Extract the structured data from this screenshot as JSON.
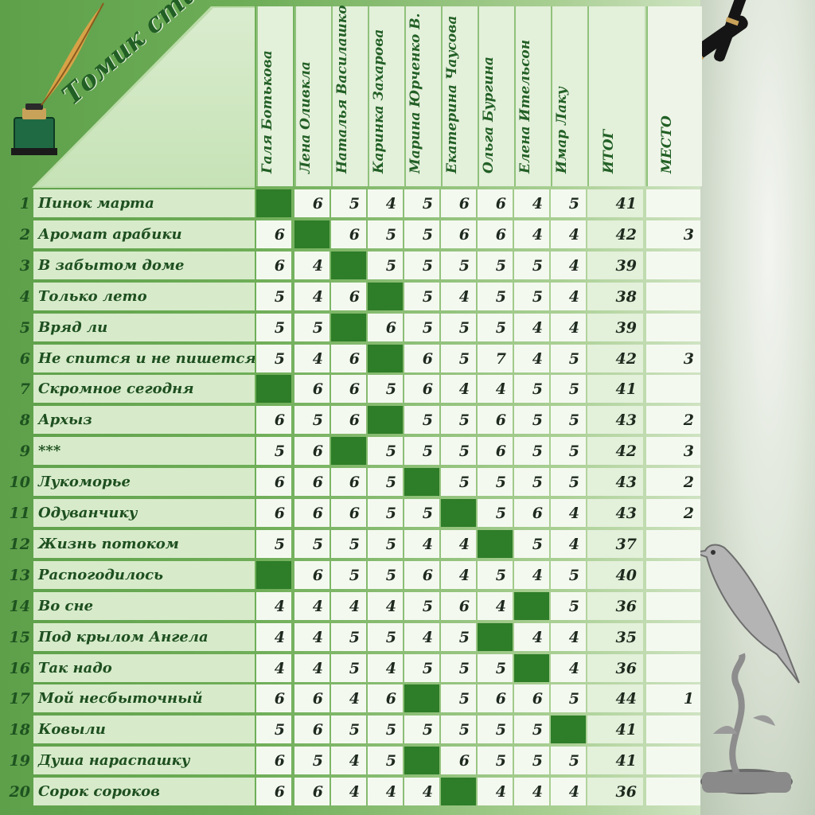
{
  "title": "Томик стихов",
  "judges": [
    "Галя Ботькова",
    "Лена Оливкла",
    "Наталья Василашко",
    "Каринка Захарова",
    "Марина Юрченко В.",
    "Екатерина Чаусова",
    "Ольга Бургина",
    "Елена Ительсон",
    "Имар Лаку"
  ],
  "total_label": "ИТОГ",
  "place_label": "МЕСТО",
  "rows": [
    {
      "num": "1",
      "name": "Пинок марта",
      "scores": [
        "",
        "6",
        "5",
        "4",
        "5",
        "6",
        "6",
        "4",
        "5"
      ],
      "dark": [
        0
      ],
      "total": "41",
      "place": ""
    },
    {
      "num": "2",
      "name": "Аромат арабики",
      "scores": [
        "6",
        "",
        "6",
        "5",
        "5",
        "6",
        "6",
        "4",
        "4"
      ],
      "dark": [
        1
      ],
      "total": "42",
      "place": "3"
    },
    {
      "num": "3",
      "name": "В забытом доме",
      "scores": [
        "6",
        "4",
        "",
        "5",
        "5",
        "5",
        "5",
        "5",
        "4"
      ],
      "dark": [
        2
      ],
      "total": "39",
      "place": ""
    },
    {
      "num": "4",
      "name": "Только лето",
      "scores": [
        "5",
        "4",
        "6",
        "",
        "5",
        "4",
        "5",
        "5",
        "4"
      ],
      "dark": [
        3
      ],
      "total": "38",
      "place": ""
    },
    {
      "num": "5",
      "name": "Вряд ли",
      "scores": [
        "5",
        "5",
        "",
        "6",
        "5",
        "5",
        "5",
        "4",
        "4"
      ],
      "dark": [
        2
      ],
      "total": "39",
      "place": ""
    },
    {
      "num": "6",
      "name": "Не спится и не пишется",
      "scores": [
        "5",
        "4",
        "6",
        "",
        "6",
        "5",
        "7",
        "4",
        "5"
      ],
      "dark": [
        3
      ],
      "total": "42",
      "place": "3"
    },
    {
      "num": "7",
      "name": "Скромное сегодня",
      "scores": [
        "",
        "6",
        "6",
        "5",
        "6",
        "4",
        "4",
        "5",
        "5"
      ],
      "dark": [
        0
      ],
      "total": "41",
      "place": ""
    },
    {
      "num": "8",
      "name": "Архыз",
      "scores": [
        "6",
        "5",
        "6",
        "",
        "5",
        "5",
        "6",
        "5",
        "5"
      ],
      "dark": [
        3
      ],
      "total": "43",
      "place": "2"
    },
    {
      "num": "9",
      "name": "***",
      "scores": [
        "5",
        "6",
        "",
        "5",
        "5",
        "5",
        "6",
        "5",
        "5"
      ],
      "dark": [
        2
      ],
      "total": "42",
      "place": "3"
    },
    {
      "num": "10",
      "name": "Лукоморье",
      "scores": [
        "6",
        "6",
        "6",
        "5",
        "",
        "5",
        "5",
        "5",
        "5"
      ],
      "dark": [
        4
      ],
      "total": "43",
      "place": "2"
    },
    {
      "num": "11",
      "name": "Одуванчику",
      "scores": [
        "6",
        "6",
        "6",
        "5",
        "5",
        "",
        "5",
        "6",
        "4"
      ],
      "dark": [
        5
      ],
      "total": "43",
      "place": "2"
    },
    {
      "num": "12",
      "name": "Жизнь потоком",
      "scores": [
        "5",
        "5",
        "5",
        "5",
        "4",
        "4",
        "",
        "5",
        "4"
      ],
      "dark": [
        6
      ],
      "total": "37",
      "place": ""
    },
    {
      "num": "13",
      "name": "Распогодилось",
      "scores": [
        "",
        "6",
        "5",
        "5",
        "6",
        "4",
        "5",
        "4",
        "5"
      ],
      "dark": [
        0
      ],
      "total": "40",
      "place": ""
    },
    {
      "num": "14",
      "name": "Во сне",
      "scores": [
        "4",
        "4",
        "4",
        "4",
        "5",
        "6",
        "4",
        "",
        "5"
      ],
      "dark": [
        7
      ],
      "total": "36",
      "place": ""
    },
    {
      "num": "15",
      "name": "Под крылом Ангела",
      "scores": [
        "4",
        "4",
        "5",
        "5",
        "4",
        "5",
        "",
        "4",
        "4"
      ],
      "dark": [
        6
      ],
      "total": "35",
      "place": ""
    },
    {
      "num": "16",
      "name": "Так надо",
      "scores": [
        "4",
        "4",
        "5",
        "4",
        "5",
        "5",
        "5",
        "",
        "4"
      ],
      "dark": [
        7
      ],
      "total": "36",
      "place": ""
    },
    {
      "num": "17",
      "name": "Мой несбыточный",
      "scores": [
        "6",
        "6",
        "4",
        "6",
        "",
        "5",
        "6",
        "6",
        "5"
      ],
      "dark": [
        4
      ],
      "total": "44",
      "place": "1"
    },
    {
      "num": "18",
      "name": "Ковыли",
      "scores": [
        "5",
        "6",
        "5",
        "5",
        "5",
        "5",
        "5",
        "5",
        ""
      ],
      "dark": [
        8
      ],
      "total": "41",
      "place": ""
    },
    {
      "num": "19",
      "name": "Душа нараспашку",
      "scores": [
        "6",
        "5",
        "4",
        "5",
        "",
        "6",
        "5",
        "5",
        "5"
      ],
      "dark": [
        4
      ],
      "total": "41",
      "place": ""
    },
    {
      "num": "20",
      "name": "Сорок сороков",
      "scores": [
        "6",
        "6",
        "4",
        "4",
        "4",
        "",
        "4",
        "4",
        "4"
      ],
      "dark": [
        5
      ],
      "total": "36",
      "place": ""
    }
  ],
  "colors": {
    "dark_cell": "#2e7d28",
    "text_green": "#225f25",
    "background": "#6fae58"
  },
  "icons": [
    "inkwell-quill-icon",
    "fountain-pen-icon",
    "bird-statuette-icon"
  ]
}
